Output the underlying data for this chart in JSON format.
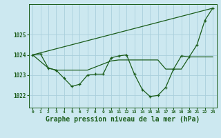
{
  "background_color": "#cce8f0",
  "grid_color": "#aacfdc",
  "line_color": "#1a5c1a",
  "xlabel": "Graphe pression niveau de la mer (hPa)",
  "xlabel_fontsize": 7,
  "ylabel_ticks": [
    1022,
    1023,
    1024,
    1025
  ],
  "xlim": [
    -0.5,
    23.5
  ],
  "ylim": [
    1021.4,
    1026.5
  ],
  "series1_x": [
    0,
    1,
    2,
    3,
    4,
    5,
    6,
    7,
    8,
    9,
    10,
    11,
    12,
    13,
    14,
    15,
    16,
    17,
    18,
    19,
    20,
    21,
    22,
    23
  ],
  "series1_y": [
    1024.0,
    1024.05,
    1023.35,
    1023.25,
    1022.85,
    1022.45,
    1022.55,
    1023.0,
    1023.05,
    1023.05,
    1023.85,
    1023.95,
    1024.0,
    1023.05,
    1022.3,
    1021.95,
    1022.0,
    1022.4,
    1023.3,
    1023.95,
    1023.9,
    1024.5,
    1025.7,
    1026.3
  ],
  "series2_x": [
    0,
    2,
    3,
    5,
    7,
    10,
    11,
    12,
    14,
    15,
    16,
    17,
    19,
    20,
    22,
    23
  ],
  "series2_y": [
    1024.0,
    1023.35,
    1023.25,
    1023.25,
    1023.25,
    1023.7,
    1023.75,
    1023.75,
    1023.75,
    1023.75,
    1023.75,
    1023.3,
    1023.3,
    1023.9,
    1023.9,
    1023.9
  ],
  "series3_x": [
    0,
    23
  ],
  "series3_y": [
    1024.0,
    1026.3
  ],
  "xtick_labels": [
    "0",
    "1",
    "2",
    "3",
    "4",
    "5",
    "6",
    "7",
    "8",
    "9",
    "10",
    "11",
    "12",
    "13",
    "14",
    "15",
    "16",
    "17",
    "18",
    "19",
    "20",
    "21",
    "22",
    "23"
  ],
  "xtick_fontsize": 4.5,
  "ytick_fontsize": 5.5
}
